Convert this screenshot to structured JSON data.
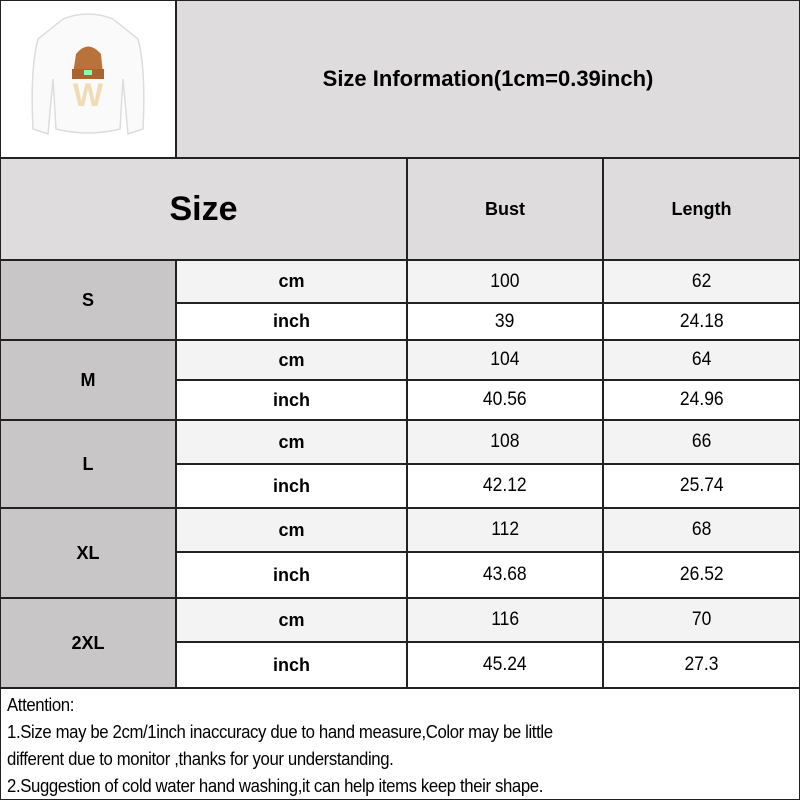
{
  "title": "Size Information(1cm=0.39inch)",
  "product_image": {
    "icon": "white-sweatshirt-with-beanie-w-graphic",
    "graphic_letter": "W",
    "colors": {
      "beanie": "#b9733a",
      "letter": "#efdcb5"
    }
  },
  "table": {
    "headers": {
      "size": "Size",
      "bust": "Bust",
      "length": "Length"
    },
    "rows": [
      {
        "size": "S",
        "cm": {
          "unit": "cm",
          "bust": "100",
          "length": "62"
        },
        "inch": {
          "unit": "inch",
          "bust": "39",
          "length": "24.18"
        }
      },
      {
        "size": "M",
        "cm": {
          "unit": "cm",
          "bust": "104",
          "length": "64"
        },
        "inch": {
          "unit": "inch",
          "bust": "40.56",
          "length": "24.96"
        }
      },
      {
        "size": "L",
        "cm": {
          "unit": "cm",
          "bust": "108",
          "length": "66"
        },
        "inch": {
          "unit": "inch",
          "bust": "42.12",
          "length": "25.74"
        }
      },
      {
        "size": "XL",
        "cm": {
          "unit": "cm",
          "bust": "112",
          "length": "68"
        },
        "inch": {
          "unit": "inch",
          "bust": "43.68",
          "length": "26.52"
        }
      },
      {
        "size": "2XL",
        "cm": {
          "unit": "cm",
          "bust": "116",
          "length": "70"
        },
        "inch": {
          "unit": "inch",
          "bust": "45.24",
          "length": "27.3"
        }
      }
    ]
  },
  "attention": {
    "heading": "Attention:",
    "lines": [
      "1.Size may be 2cm/1inch inaccuracy due to hand measure,Color may be little",
      "different due to monitor ,thanks for your understanding.",
      "2.Suggestion of cold water hand washing,it can help items keep their shape."
    ]
  }
}
